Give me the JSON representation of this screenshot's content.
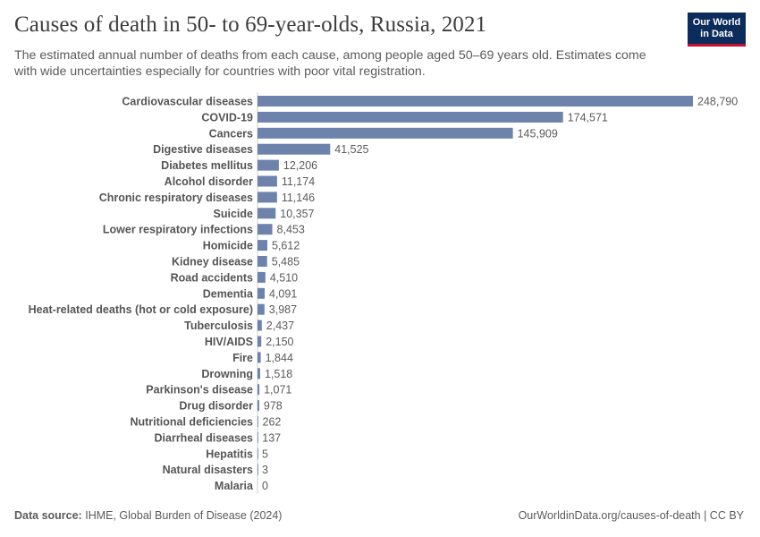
{
  "header": {
    "title": "Causes of death in 50- to 69-year-olds, Russia, 2021",
    "subtitle": "The estimated annual number of deaths from each cause, among people aged 50–69 years old. Estimates come with wide uncertainties especially for countries with poor vital registration.",
    "logo_line1": "Our World",
    "logo_line2": "in Data"
  },
  "footer": {
    "source_label": "Data source:",
    "source_text": "IHME, Global Burden of Disease (2024)",
    "url": "OurWorldinData.org/causes-of-death | CC BY"
  },
  "colors": {
    "bar": "#6d83ac",
    "logo_bg": "#0c2c5b",
    "logo_accent": "#c8102e"
  },
  "chart_data": {
    "type": "bar",
    "orientation": "horizontal",
    "title": "Causes of death in 50- to 69-year-olds, Russia, 2021",
    "xlim": [
      0,
      248790
    ],
    "grid": false,
    "categories": [
      "Cardiovascular diseases",
      "COVID-19",
      "Cancers",
      "Digestive diseases",
      "Diabetes mellitus",
      "Alcohol disorder",
      "Chronic respiratory diseases",
      "Suicide",
      "Lower respiratory infections",
      "Homicide",
      "Kidney disease",
      "Road accidents",
      "Dementia",
      "Heat-related deaths (hot or cold exposure)",
      "Tuberculosis",
      "HIV/AIDS",
      "Fire",
      "Drowning",
      "Parkinson's disease",
      "Drug disorder",
      "Nutritional deficiencies",
      "Diarrheal diseases",
      "Hepatitis",
      "Natural disasters",
      "Malaria"
    ],
    "values": [
      248790,
      174571,
      145909,
      41525,
      12206,
      11174,
      11146,
      10357,
      8453,
      5612,
      5485,
      4510,
      4091,
      3987,
      2437,
      2150,
      1844,
      1518,
      1071,
      978,
      262,
      137,
      5,
      3,
      0
    ],
    "value_labels": [
      "248,790",
      "174,571",
      "145,909",
      "41,525",
      "12,206",
      "11,174",
      "11,146",
      "10,357",
      "8,453",
      "5,612",
      "5,485",
      "4,510",
      "4,091",
      "3,987",
      "2,437",
      "2,150",
      "1,844",
      "1,518",
      "1,071",
      "978",
      "262",
      "137",
      "5",
      "3",
      "0"
    ]
  }
}
